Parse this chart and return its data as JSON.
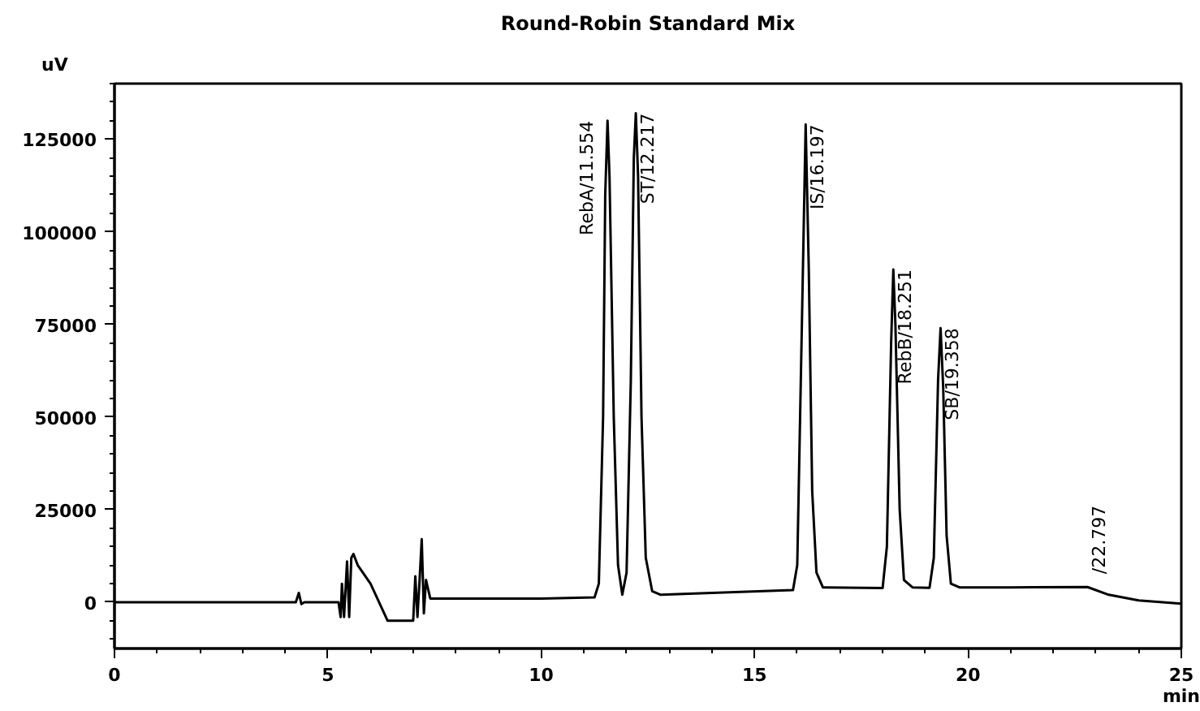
{
  "chart_data": {
    "type": "line",
    "title": "Round-Robin Standard Mix",
    "xlabel": "min",
    "ylabel": "uV",
    "x": [
      0,
      1,
      2,
      3,
      4,
      4.25,
      4.32,
      4.38,
      4.45,
      4.6,
      5.0,
      5.25,
      5.3,
      5.33,
      5.38,
      5.45,
      5.5,
      5.55,
      5.6,
      5.7,
      6.0,
      6.4,
      7.0,
      7.05,
      7.1,
      7.15,
      7.2,
      7.25,
      7.3,
      7.4,
      7.6,
      8.5,
      10,
      11.25,
      11.35,
      11.45,
      11.5,
      11.554,
      11.6,
      11.7,
      11.8,
      11.9,
      12.0,
      12.1,
      12.17,
      12.217,
      12.27,
      12.35,
      12.45,
      12.6,
      12.8,
      14,
      15.9,
      16.0,
      16.1,
      16.197,
      16.27,
      16.35,
      16.45,
      16.6,
      18.0,
      18.1,
      18.2,
      18.251,
      18.3,
      18.4,
      18.5,
      18.7,
      19.1,
      19.2,
      19.3,
      19.358,
      19.42,
      19.5,
      19.6,
      19.8,
      21,
      22.8,
      23.3,
      24.0,
      25
    ],
    "series": [
      {
        "color": "#000000",
        "values": [
          0,
          0,
          0,
          0,
          0,
          0,
          2500,
          -500,
          0,
          0,
          0,
          0,
          -4000,
          5000,
          -4000,
          11000,
          -4000,
          12000,
          13000,
          10000,
          5000,
          -5000,
          -5000,
          7000,
          -4000,
          6000,
          17000,
          -3000,
          6000,
          1000,
          1000,
          1000,
          1000,
          1300,
          5000,
          50000,
          110000,
          130000,
          115000,
          50000,
          10000,
          2000,
          8000,
          60000,
          120000,
          132000,
          115000,
          50000,
          12000,
          3000,
          2000,
          2500,
          3300,
          10000,
          70000,
          129000,
          90000,
          30000,
          8000,
          4000,
          3800,
          15000,
          70000,
          89800,
          75000,
          25000,
          6000,
          4000,
          3900,
          12000,
          60000,
          74000,
          58000,
          18000,
          5000,
          4000,
          4000,
          4100,
          2000,
          500,
          -400
        ]
      }
    ],
    "annotations": [
      {
        "text": "RebA/11.554",
        "x": 11.554,
        "y": 130000
      },
      {
        "text": "ST/12.217",
        "x": 12.217,
        "y": 132000
      },
      {
        "text": "IS/16.197",
        "x": 16.197,
        "y": 129000
      },
      {
        "text": "RebB/18.251",
        "x": 18.251,
        "y": 89800
      },
      {
        "text": "SB/19.358",
        "x": 19.358,
        "y": 74000
      },
      {
        "text": "/22.797",
        "x": 22.797,
        "y": 4100
      }
    ],
    "xlim": [
      0,
      25
    ],
    "ylim": [
      -12500,
      140000
    ],
    "xticks": [
      0,
      5,
      10,
      15,
      20,
      25
    ],
    "yticks": [
      0,
      25000,
      50000,
      75000,
      100000,
      125000
    ],
    "grid": false,
    "marker": "none",
    "line_style": "solid"
  }
}
